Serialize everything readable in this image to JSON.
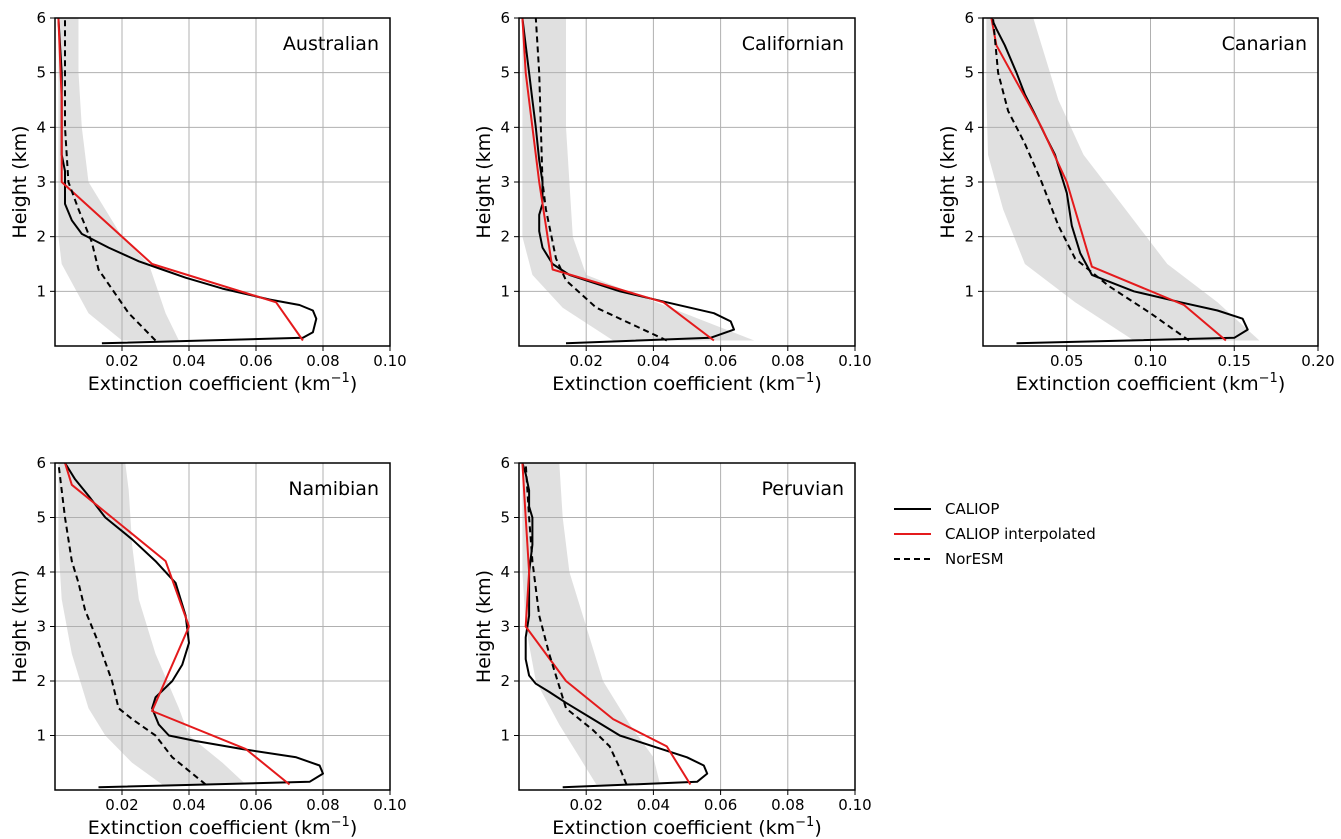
{
  "chart_data": {
    "type": "line",
    "legend": {
      "placement": "right",
      "entries": [
        {
          "label": "CALIOP",
          "color": "#000000",
          "style": "solid"
        },
        {
          "label": "CALIOP interpolated",
          "color": "#e41a1c",
          "style": "solid"
        },
        {
          "label": "NorESM",
          "color": "#000000",
          "style": "dashed"
        }
      ]
    },
    "shading_color": "#e0e0e0",
    "grid": true,
    "panels": [
      {
        "title": "Australian",
        "xlabel": "Extinction coefficient (km",
        "xlabel_sup": "−1",
        "xlabel_close": ")",
        "ylabel": "Height (km)",
        "xlim": [
          0,
          0.1
        ],
        "ylim": [
          0,
          6
        ],
        "xticks": [
          0.02,
          0.04,
          0.06,
          0.08,
          0.1
        ],
        "xticklabels": [
          "0.02",
          "0.04",
          "0.06",
          "0.08",
          "0.10"
        ],
        "yticks": [
          1,
          2,
          3,
          4,
          5,
          6
        ],
        "yticklabels": [
          "1",
          "2",
          "3",
          "4",
          "5",
          "6"
        ],
        "series": [
          {
            "name": "CALIOP",
            "x": [
              0.014,
              0.074,
              0.077,
              0.078,
              0.077,
              0.073,
              0.064,
              0.05,
              0.039,
              0.032,
              0.025,
              0.016,
              0.008,
              0.005,
              0.003,
              0.003,
              0.003,
              0.002,
              0.002,
              0.002,
              0.001
            ],
            "y": [
              0.05,
              0.15,
              0.25,
              0.5,
              0.65,
              0.75,
              0.85,
              1.05,
              1.25,
              1.4,
              1.55,
              1.8,
              2.05,
              2.3,
              2.6,
              3.0,
              3.2,
              3.5,
              4.0,
              5.0,
              6.0
            ]
          },
          {
            "name": "CALIOP interpolated",
            "x": [
              0.074,
              0.066,
              0.029,
              0.002,
              0.002,
              0.002,
              0.001
            ],
            "y": [
              0.1,
              0.8,
              1.5,
              3.0,
              3.3,
              4.5,
              6.0
            ]
          },
          {
            "name": "NorESM",
            "x": [
              0.03,
              0.022,
              0.013,
              0.011,
              0.007,
              0.004,
              0.003,
              0.003,
              0.003
            ],
            "y": [
              0.1,
              0.6,
              1.4,
              1.9,
              2.5,
              3.0,
              4.0,
              5.0,
              6.0
            ]
          }
        ],
        "range": {
          "low": [
            0.02,
            0.01,
            0.002,
            0.001,
            0.001,
            0.001,
            0.001,
            0.001,
            0.001
          ],
          "high": [
            0.037,
            0.033,
            0.028,
            0.02,
            0.01,
            0.008,
            0.007,
            0.007,
            0.007
          ],
          "y": [
            0.1,
            0.6,
            1.5,
            2.0,
            3.0,
            4.0,
            5.0,
            5.7,
            6.0
          ]
        }
      },
      {
        "title": "Californian",
        "xlabel": "Extinction coefficient (km",
        "xlabel_sup": "−1",
        "xlabel_close": ")",
        "ylabel": "Height (km)",
        "xlim": [
          0,
          0.1
        ],
        "ylim": [
          0,
          6
        ],
        "xticks": [
          0.02,
          0.04,
          0.06,
          0.08,
          0.1
        ],
        "xticklabels": [
          "0.02",
          "0.04",
          "0.06",
          "0.08",
          "0.10"
        ],
        "yticks": [
          1,
          2,
          3,
          4,
          5,
          6
        ],
        "yticklabels": [
          "1",
          "2",
          "3",
          "4",
          "5",
          "6"
        ],
        "series": [
          {
            "name": "CALIOP",
            "x": [
              0.014,
              0.057,
              0.064,
              0.063,
              0.058,
              0.044,
              0.03,
              0.015,
              0.01,
              0.007,
              0.006,
              0.006,
              0.007,
              0.007,
              0.006,
              0.005,
              0.004,
              0.003,
              0.002,
              0.001
            ],
            "y": [
              0.05,
              0.15,
              0.3,
              0.45,
              0.6,
              0.8,
              1.0,
              1.3,
              1.5,
              1.8,
              2.1,
              2.4,
              2.6,
              3.0,
              3.4,
              4.0,
              4.5,
              5.0,
              5.5,
              6.0
            ]
          },
          {
            "name": "CALIOP interpolated",
            "x": [
              0.058,
              0.043,
              0.01,
              0.006,
              0.004,
              0.002,
              0.001
            ],
            "y": [
              0.1,
              0.8,
              1.4,
              3.0,
              4.0,
              5.0,
              6.0
            ]
          },
          {
            "name": "NorESM",
            "x": [
              0.044,
              0.023,
              0.014,
              0.011,
              0.008,
              0.007,
              0.006,
              0.005
            ],
            "y": [
              0.1,
              0.7,
              1.2,
              1.6,
              2.5,
              3.0,
              5.0,
              6.0
            ]
          }
        ],
        "range": {
          "low": [
            0.028,
            0.013,
            0.004,
            0.001,
            0.001,
            0.001,
            0.001
          ],
          "high": [
            0.07,
            0.045,
            0.02,
            0.016,
            0.015,
            0.014,
            0.014
          ],
          "y": [
            0.1,
            0.7,
            1.3,
            2.0,
            3.0,
            4.0,
            6.0
          ]
        }
      },
      {
        "title": "Canarian",
        "xlabel": "Extinction coefficient (km",
        "xlabel_sup": "−1",
        "xlabel_close": ")",
        "ylabel": "Height (km)",
        "xlim": [
          0,
          0.2
        ],
        "ylim": [
          0,
          6
        ],
        "xticks": [
          0.05,
          0.1,
          0.15,
          0.2
        ],
        "xticklabels": [
          "0.05",
          "0.10",
          "0.15",
          "0.20"
        ],
        "yticks": [
          1,
          2,
          3,
          4,
          5,
          6
        ],
        "yticklabels": [
          "1",
          "2",
          "3",
          "4",
          "5",
          "6"
        ],
        "series": [
          {
            "name": "CALIOP",
            "x": [
              0.02,
              0.15,
              0.158,
              0.155,
              0.14,
              0.118,
              0.09,
              0.065,
              0.058,
              0.053,
              0.05,
              0.046,
              0.043,
              0.038,
              0.03,
              0.025,
              0.02,
              0.013,
              0.008,
              0.005
            ],
            "y": [
              0.05,
              0.15,
              0.3,
              0.5,
              0.65,
              0.8,
              1.0,
              1.3,
              1.7,
              2.2,
              2.8,
              3.2,
              3.5,
              3.8,
              4.3,
              4.6,
              5.0,
              5.5,
              5.8,
              6.0
            ]
          },
          {
            "name": "CALIOP interpolated",
            "x": [
              0.145,
              0.12,
              0.065,
              0.05,
              0.035,
              0.008,
              0.005
            ],
            "y": [
              0.1,
              0.75,
              1.45,
              3.0,
              4.0,
              5.5,
              6.0
            ]
          },
          {
            "name": "NorESM",
            "x": [
              0.123,
              0.1,
              0.075,
              0.055,
              0.045,
              0.035,
              0.025,
              0.015,
              0.009,
              0.006
            ],
            "y": [
              0.1,
              0.6,
              1.1,
              1.6,
              2.2,
              3.0,
              3.7,
              4.3,
              5.0,
              6.0
            ]
          }
        ],
        "range": {
          "low": [
            0.09,
            0.055,
            0.025,
            0.012,
            0.003,
            0.002,
            0.002,
            0.002
          ],
          "high": [
            0.165,
            0.14,
            0.11,
            0.085,
            0.06,
            0.045,
            0.035,
            0.03
          ],
          "y": [
            0.1,
            0.8,
            1.5,
            2.5,
            3.5,
            4.5,
            5.5,
            6.0
          ]
        }
      },
      {
        "title": "Namibian",
        "xlabel": "Extinction coefficient (km",
        "xlabel_sup": "−1",
        "xlabel_close": ")",
        "ylabel": "Height (km)",
        "xlim": [
          0,
          0.1
        ],
        "ylim": [
          0,
          6
        ],
        "xticks": [
          0.02,
          0.04,
          0.06,
          0.08,
          0.1
        ],
        "xticklabels": [
          "0.02",
          "0.04",
          "0.06",
          "0.08",
          "0.10"
        ],
        "yticks": [
          1,
          2,
          3,
          4,
          5,
          6
        ],
        "yticklabels": [
          "1",
          "2",
          "3",
          "4",
          "5",
          "6"
        ],
        "series": [
          {
            "name": "CALIOP",
            "x": [
              0.013,
              0.076,
              0.08,
              0.079,
              0.072,
              0.056,
              0.042,
              0.034,
              0.031,
              0.029,
              0.03,
              0.035,
              0.038,
              0.04,
              0.039,
              0.036,
              0.03,
              0.023,
              0.015,
              0.01,
              0.006,
              0.003
            ],
            "y": [
              0.05,
              0.15,
              0.3,
              0.45,
              0.6,
              0.75,
              0.9,
              1.0,
              1.2,
              1.5,
              1.7,
              2.0,
              2.3,
              2.7,
              3.2,
              3.8,
              4.2,
              4.6,
              5.0,
              5.4,
              5.7,
              6.0
            ]
          },
          {
            "name": "CALIOP interpolated",
            "x": [
              0.07,
              0.057,
              0.029,
              0.04,
              0.033,
              0.005,
              0.003
            ],
            "y": [
              0.1,
              0.75,
              1.45,
              3.0,
              4.2,
              5.6,
              6.0
            ]
          },
          {
            "name": "NorESM",
            "x": [
              0.045,
              0.035,
              0.03,
              0.023,
              0.019,
              0.017,
              0.013,
              0.009,
              0.007,
              0.005,
              0.003,
              0.001
            ],
            "y": [
              0.1,
              0.6,
              1.0,
              1.3,
              1.5,
              2.0,
              2.7,
              3.3,
              3.8,
              4.2,
              5.0,
              6.0
            ]
          }
        ],
        "range": {
          "low": [
            0.032,
            0.023,
            0.015,
            0.01,
            0.005,
            0.002,
            0.001,
            0.001,
            0.001
          ],
          "high": [
            0.057,
            0.05,
            0.04,
            0.037,
            0.03,
            0.025,
            0.023,
            0.022,
            0.021
          ],
          "y": [
            0.1,
            0.5,
            1.0,
            1.5,
            2.5,
            3.5,
            4.5,
            5.5,
            6.0
          ]
        }
      },
      {
        "title": "Peruvian",
        "xlabel": "Extinction coefficient (km",
        "xlabel_sup": "−1",
        "xlabel_close": ")",
        "ylabel": "Height (km)",
        "xlim": [
          0,
          0.1
        ],
        "ylim": [
          0,
          6
        ],
        "xticks": [
          0.02,
          0.04,
          0.06,
          0.08,
          0.1
        ],
        "xticklabels": [
          "0.02",
          "0.04",
          "0.06",
          "0.08",
          "0.10"
        ],
        "yticks": [
          1,
          2,
          3,
          4,
          5,
          6
        ],
        "yticklabels": [
          "1",
          "2",
          "3",
          "4",
          "5",
          "6"
        ],
        "series": [
          {
            "name": "CALIOP",
            "x": [
              0.013,
              0.053,
              0.056,
              0.055,
              0.05,
              0.04,
              0.03,
              0.022,
              0.014,
              0.009,
              0.005,
              0.003,
              0.002,
              0.002,
              0.003,
              0.003,
              0.004,
              0.004,
              0.003,
              0.003,
              0.002,
              0.001
            ],
            "y": [
              0.05,
              0.15,
              0.3,
              0.45,
              0.6,
              0.8,
              1.0,
              1.3,
              1.6,
              1.8,
              1.95,
              2.1,
              2.4,
              2.8,
              3.2,
              4.0,
              4.5,
              5.0,
              5.2,
              5.5,
              5.8,
              6.0
            ]
          },
          {
            "name": "CALIOP interpolated",
            "x": [
              0.051,
              0.044,
              0.028,
              0.014,
              0.002,
              0.003,
              0.002,
              0.001
            ],
            "y": [
              0.1,
              0.8,
              1.3,
              2.0,
              3.0,
              4.0,
              5.0,
              6.0
            ]
          },
          {
            "name": "NorESM",
            "x": [
              0.032,
              0.03,
              0.027,
              0.022,
              0.014,
              0.012,
              0.009,
              0.006,
              0.004,
              0.003,
              0.002
            ],
            "y": [
              0.1,
              0.4,
              0.8,
              1.1,
              1.5,
              1.9,
              2.5,
              3.2,
              4.2,
              5.0,
              6.0
            ]
          }
        ],
        "range": {
          "low": [
            0.023,
            0.018,
            0.012,
            0.005,
            0.002,
            0.001,
            0.001,
            0.001
          ],
          "high": [
            0.042,
            0.04,
            0.033,
            0.025,
            0.02,
            0.015,
            0.013,
            0.012
          ],
          "y": [
            0.1,
            0.6,
            1.2,
            2.0,
            3.0,
            4.0,
            5.0,
            6.0
          ]
        }
      }
    ]
  }
}
